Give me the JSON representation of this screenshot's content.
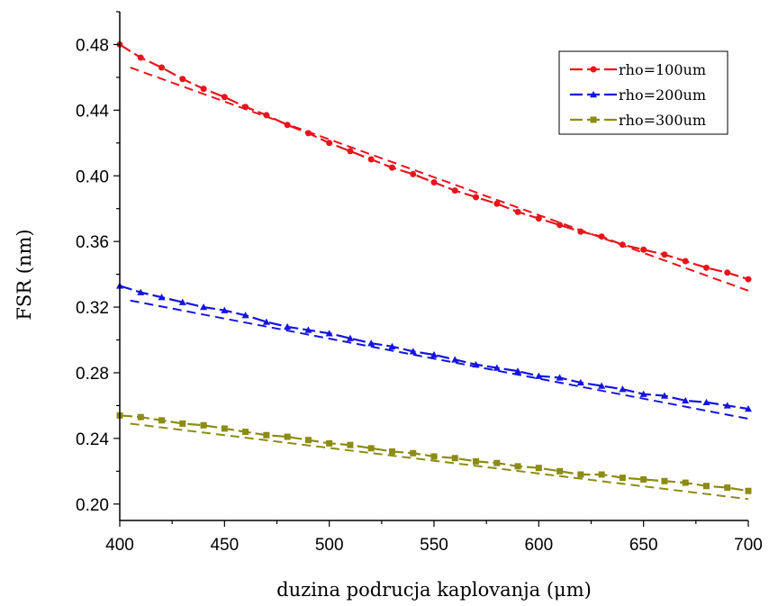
{
  "chart_data": {
    "type": "line",
    "title": "",
    "xlabel": "duzina podrucja kaplovanja (μm)",
    "ylabel": "FSR (nm)",
    "xlim": [
      400,
      700
    ],
    "ylim": [
      0.19,
      0.5
    ],
    "x_ticks": [
      "400",
      "450",
      "500",
      "550",
      "600",
      "650",
      "700"
    ],
    "y_ticks": [
      "0.20",
      "0.24",
      "0.28",
      "0.32",
      "0.36",
      "0.40",
      "0.44",
      "0.48"
    ],
    "legend_position": "top-right",
    "grid": false,
    "x": [
      400,
      410,
      420,
      430,
      440,
      450,
      460,
      470,
      480,
      490,
      500,
      510,
      520,
      530,
      540,
      550,
      560,
      570,
      580,
      590,
      600,
      610,
      620,
      630,
      640,
      650,
      660,
      670,
      680,
      690,
      700
    ],
    "series": [
      {
        "name": "rho=100um",
        "color": "#e8141c",
        "marker": "circle",
        "values": [
          0.48,
          0.472,
          0.466,
          0.459,
          0.453,
          0.448,
          0.442,
          0.437,
          0.431,
          0.426,
          0.42,
          0.415,
          0.41,
          0.405,
          0.401,
          0.396,
          0.391,
          0.387,
          0.383,
          0.378,
          0.374,
          0.37,
          0.366,
          0.363,
          0.358,
          0.355,
          0.352,
          0.348,
          0.344,
          0.341,
          0.337
        ]
      },
      {
        "name": "rho=200um",
        "color": "#1414e0",
        "marker": "triangle",
        "values": [
          0.333,
          0.329,
          0.326,
          0.323,
          0.32,
          0.318,
          0.315,
          0.311,
          0.308,
          0.306,
          0.304,
          0.301,
          0.298,
          0.296,
          0.293,
          0.291,
          0.288,
          0.285,
          0.283,
          0.281,
          0.278,
          0.277,
          0.274,
          0.272,
          0.27,
          0.267,
          0.266,
          0.263,
          0.262,
          0.26,
          0.258
        ]
      },
      {
        "name": "rho=300um",
        "color": "#8c8c14",
        "marker": "square",
        "values": [
          0.254,
          0.253,
          0.251,
          0.249,
          0.248,
          0.246,
          0.244,
          0.242,
          0.241,
          0.239,
          0.237,
          0.236,
          0.234,
          0.232,
          0.231,
          0.229,
          0.228,
          0.226,
          0.225,
          0.223,
          0.222,
          0.22,
          0.218,
          0.218,
          0.216,
          0.215,
          0.214,
          0.213,
          0.211,
          0.21,
          0.208
        ]
      }
    ],
    "dashed_series": [
      {
        "color": "#e8141c",
        "x": [
          405,
          700
        ],
        "values": [
          0.466,
          0.33
        ]
      },
      {
        "color": "#1414e0",
        "x": [
          405,
          700
        ],
        "values": [
          0.324,
          0.252
        ]
      },
      {
        "color": "#8c8c14",
        "x": [
          405,
          700
        ],
        "values": [
          0.249,
          0.203
        ]
      }
    ]
  }
}
